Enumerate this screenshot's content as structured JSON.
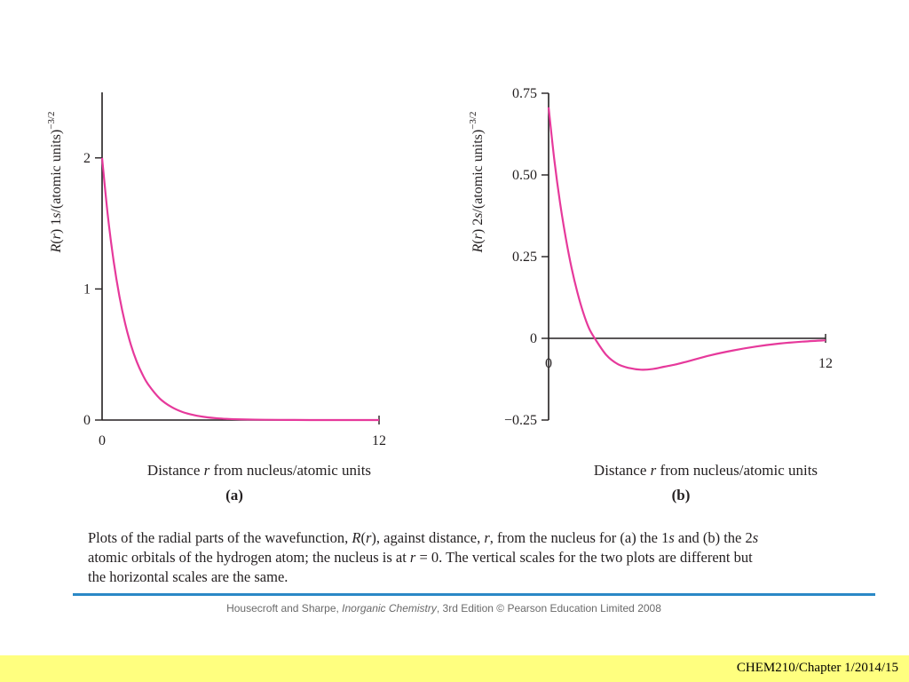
{
  "chart_data": [
    {
      "id": "a",
      "type": "line",
      "panel_label": "(a)",
      "xlabel_pre": "Distance ",
      "xlabel_var": "r",
      "xlabel_post": " from nucleus/atomic units",
      "ylabel_parts": [
        {
          "t": "R",
          "i": true
        },
        {
          "t": "(",
          "i": false
        },
        {
          "t": "r",
          "i": true
        },
        {
          "t": ") 1",
          "i": false
        },
        {
          "t": "s",
          "i": true
        },
        {
          "t": "/(atomic units)",
          "i": false
        }
      ],
      "ylabel_sup": "−3/2",
      "xlim": [
        0,
        12
      ],
      "ylim": [
        0,
        2.5
      ],
      "xticks": [
        {
          "v": 0,
          "label": "0"
        },
        {
          "v": 12,
          "label": "12"
        }
      ],
      "yticks": [
        {
          "v": 0,
          "label": "0"
        },
        {
          "v": 1,
          "label": "1"
        },
        {
          "v": 2,
          "label": "2"
        }
      ],
      "series_color": "#e6399b",
      "x": [
        0,
        0.25,
        0.5,
        0.75,
        1,
        1.25,
        1.5,
        1.75,
        2,
        2.5,
        3,
        3.5,
        4,
        4.5,
        5,
        5.5,
        6,
        7,
        8,
        9,
        10,
        11,
        12
      ],
      "y": [
        2,
        1.558,
        1.213,
        0.945,
        0.736,
        0.573,
        0.446,
        0.348,
        0.271,
        0.164,
        0.1,
        0.06,
        0.037,
        0.022,
        0.013,
        0.008,
        0.005,
        0.002,
        0.001,
        0,
        0,
        0,
        0
      ]
    },
    {
      "id": "b",
      "type": "line",
      "panel_label": "(b)",
      "xlabel_pre": "Distance ",
      "xlabel_var": "r",
      "xlabel_post": " from nucleus/atomic units",
      "ylabel_parts": [
        {
          "t": "R",
          "i": true
        },
        {
          "t": "(",
          "i": false
        },
        {
          "t": "r",
          "i": true
        },
        {
          "t": ") 2",
          "i": false
        },
        {
          "t": "s",
          "i": true
        },
        {
          "t": "/(atomic units)",
          "i": false
        }
      ],
      "ylabel_sup": "−3/2",
      "xlim": [
        0,
        12
      ],
      "ylim": [
        -0.25,
        0.75
      ],
      "xticks": [
        {
          "v": 0,
          "label": "0"
        },
        {
          "v": 12,
          "label": "12"
        }
      ],
      "yticks": [
        {
          "v": -0.25,
          "label": "−0.25"
        },
        {
          "v": 0,
          "label": "0"
        },
        {
          "v": 0.25,
          "label": "0.25"
        },
        {
          "v": 0.5,
          "label": "0.50"
        },
        {
          "v": 0.75,
          "label": "0.75"
        }
      ],
      "series_color": "#e6399b",
      "x": [
        0,
        0.25,
        0.5,
        0.75,
        1,
        1.25,
        1.5,
        1.75,
        2,
        2.5,
        3,
        3.5,
        4,
        4.5,
        5,
        5.5,
        6,
        7,
        8,
        9,
        10,
        11,
        12
      ],
      "y": [
        0.707,
        0.545,
        0.413,
        0.305,
        0.214,
        0.14,
        0.079,
        0.031,
        0,
        -0.051,
        -0.079,
        -0.091,
        -0.096,
        -0.094,
        -0.087,
        -0.08,
        -0.071,
        -0.052,
        -0.037,
        -0.025,
        -0.016,
        -0.01,
        -0.006
      ]
    }
  ],
  "caption": {
    "lines": [
      [
        {
          "t": "Plots of the radial parts of the wavefunction, ",
          "i": false
        },
        {
          "t": "R",
          "i": true
        },
        {
          "t": "(",
          "i": false
        },
        {
          "t": "r",
          "i": true
        },
        {
          "t": "), against distance, ",
          "i": false
        },
        {
          "t": "r",
          "i": true
        },
        {
          "t": ", from the nucleus for (a) the 1",
          "i": false
        },
        {
          "t": "s",
          "i": true
        },
        {
          "t": " and (b) the 2",
          "i": false
        },
        {
          "t": "s",
          "i": true
        }
      ],
      [
        {
          "t": "atomic orbitals of the hydrogen atom; the nucleus is at ",
          "i": false
        },
        {
          "t": "r",
          "i": true
        },
        {
          "t": " = 0. The vertical scales for the two plots are different but",
          "i": false
        }
      ],
      [
        {
          "t": "the horizontal scales are the same.",
          "i": false
        }
      ]
    ]
  },
  "credit": {
    "pre": "Housecroft and Sharpe, ",
    "book": "Inorganic Chemistry",
    "post": ", 3rd Edition © Pearson Education Limited 2008"
  },
  "footer": {
    "text": "CHEM210/Chapter 1/2014/15",
    "bg_color": "#ffff7f"
  },
  "rule_color": "#2a88c6"
}
